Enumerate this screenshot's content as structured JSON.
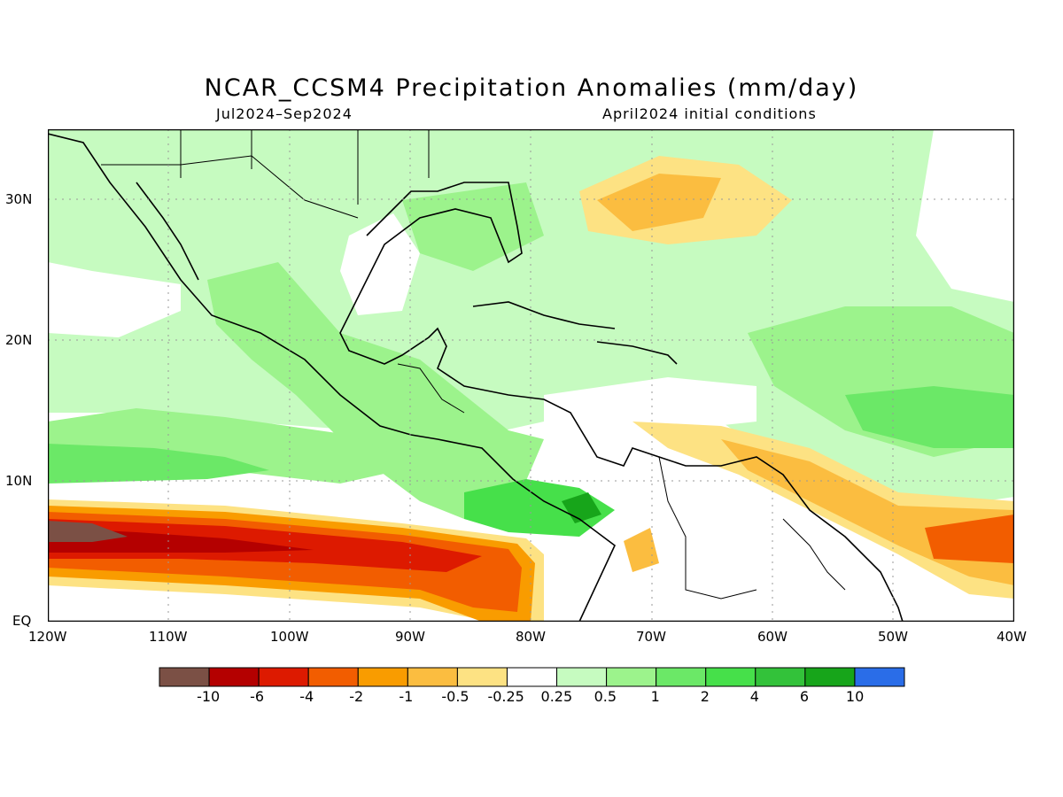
{
  "title": "NCAR_CCSM4 Precipitation Anomalies (mm/day)",
  "subtitle_left": "Jul2024–Sep2024",
  "subtitle_right": "April2024 initial conditions",
  "lat_labels": [
    "30N",
    "20N",
    "10N",
    "EQ"
  ],
  "lon_labels": [
    "120W",
    "110W",
    "100W",
    "90W",
    "80W",
    "70W",
    "60W",
    "50W",
    "40W"
  ],
  "colorbar": {
    "labels": [
      "-10",
      "-6",
      "-4",
      "-2",
      "-1",
      "-0.5",
      "-0.25",
      "0.25",
      "0.5",
      "1",
      "2",
      "4",
      "6",
      "10"
    ],
    "colors": [
      "#7b5045",
      "#b40000",
      "#dd1a00",
      "#f25d00",
      "#f99c00",
      "#fbbd40",
      "#fde283",
      "#ffffff",
      "#c6fbc0",
      "#9cf38c",
      "#6be867",
      "#46e04a",
      "#33c23a",
      "#17a51a",
      "#2a6de8"
    ]
  },
  "shading": {
    "ocean_base": "#ffffff",
    "land_base": "#c6fbc0",
    "wet": "#6be867",
    "wetter": "#33c23a",
    "dry": "#fbbd40",
    "drier": "#f25d00",
    "driest": "#b40000",
    "extreme_dry": "#7b5045"
  }
}
